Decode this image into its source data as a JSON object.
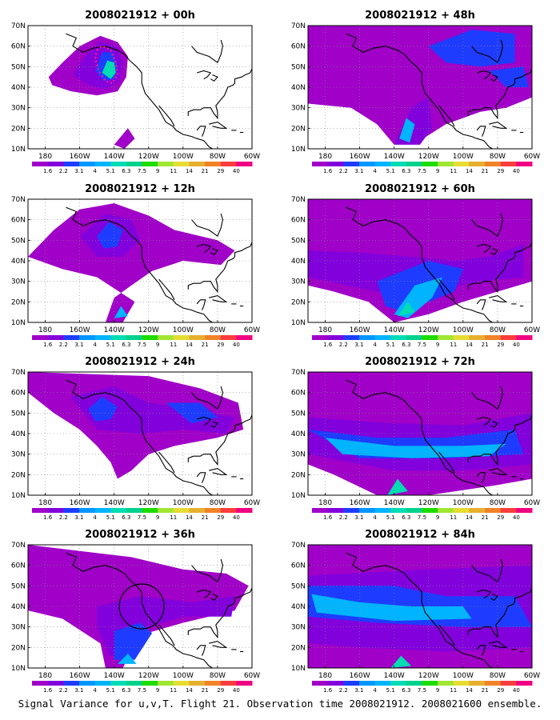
{
  "panels": [
    {
      "title": "2008021912 + 00h",
      "lead": "00h"
    },
    {
      "title": "2008021912 + 48h",
      "lead": "48h"
    },
    {
      "title": "2008021912 + 12h",
      "lead": "12h"
    },
    {
      "title": "2008021912 + 60h",
      "lead": "60h"
    },
    {
      "title": "2008021912 + 24h",
      "lead": "24h"
    },
    {
      "title": "2008021912 + 72h",
      "lead": "72h"
    },
    {
      "title": "2008021912 + 36h",
      "lead": "36h"
    },
    {
      "title": "2008021912 + 84h",
      "lead": "84h"
    }
  ],
  "axes": {
    "x_ticks": [
      "180",
      "160W",
      "140W",
      "120W",
      "100W",
      "80W",
      "60W"
    ],
    "y_ticks": [
      "70N",
      "60N",
      "50N",
      "40N",
      "30N",
      "20N",
      "10N"
    ],
    "lon_range": [
      -190,
      -60
    ],
    "lat_range": [
      10,
      70
    ]
  },
  "colorbar": {
    "labels": [
      "1.6",
      "2.2",
      "3.1",
      "4",
      "5.1",
      "6.3",
      "7.5",
      "9",
      "11",
      "14",
      "21",
      "29",
      "40"
    ],
    "colors": [
      "#a000c8",
      "#8200dc",
      "#1e3cff",
      "#0096ff",
      "#00b4ff",
      "#00dcb4",
      "#00d28c",
      "#1edc00",
      "#a0e632",
      "#e6dc32",
      "#e6af2d",
      "#f08228",
      "#fa3c3c",
      "#f00082"
    ]
  },
  "caption": "Signal Variance for u,v,T. Flight 21. Observation time 2008021912. 2008021600 ensemble."
}
